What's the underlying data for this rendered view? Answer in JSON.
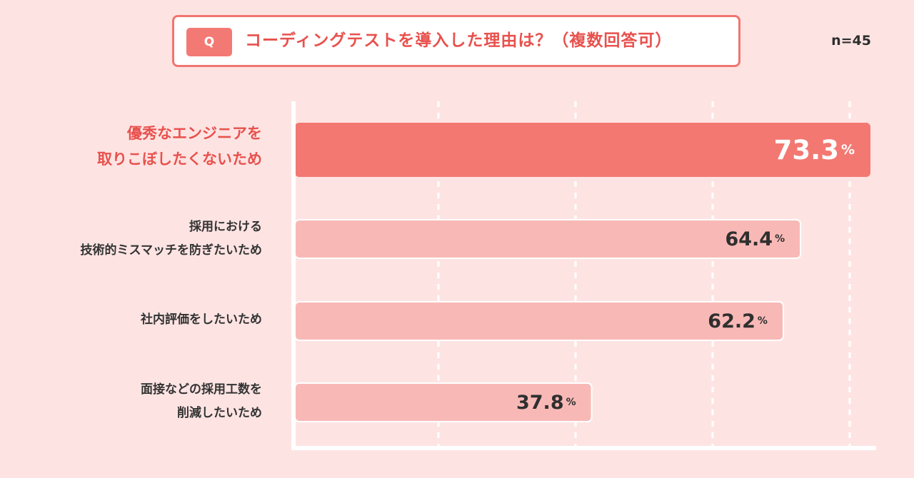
{
  "question": {
    "badge": "Q",
    "title": "コーディングテストを導入した理由は？（複数回答可）"
  },
  "sample_size": "n=45",
  "chart_data": {
    "type": "bar",
    "orientation": "horizontal",
    "title": "コーディングテストを導入した理由は？（複数回答可）",
    "categories": [
      [
        "優秀なエンジニアを",
        "取りこぼしたくないため"
      ],
      [
        "採用における",
        "技術的ミスマッチを防ぎたいため"
      ],
      [
        "社内評価をしたいため"
      ],
      [
        "面接などの採用工数を",
        "削減したいため"
      ]
    ],
    "values": [
      73.3,
      64.4,
      62.2,
      37.8
    ],
    "value_labels": [
      "73.3",
      "64.4",
      "62.2",
      "37.8"
    ],
    "unit": "%",
    "xlim": [
      0,
      73.3
    ],
    "grid": true,
    "highlight_index": 0,
    "colors": {
      "highlight_bar": "#f37872",
      "bar": "#f8b9b6",
      "highlight_label": "#e8514d",
      "label": "#333333",
      "value": "#2f2f2f",
      "value_highlight": "#ffffff",
      "grid": "#ffffff",
      "axis": "#ffffff"
    }
  }
}
